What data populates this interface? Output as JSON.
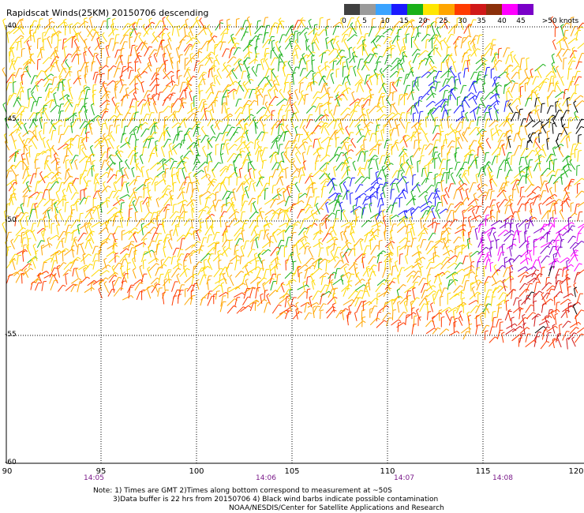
{
  "title": "Rapidscat Winds(25KM) 20150706 descending",
  "colorbar": {
    "labels": [
      "0",
      "5",
      "10",
      "15",
      "20",
      "25",
      "30",
      "35",
      "40",
      "45",
      ">50 knots"
    ],
    "colors": [
      "#404040",
      "#9a9a9a",
      "#3aa3ff",
      "#1a1aff",
      "#19b019",
      "#ffe600",
      "#ffa500",
      "#ff3b00",
      "#d01818",
      "#8b2f0a",
      "#ff00ff",
      "#7a00c8"
    ]
  },
  "axes": {
    "lat_labels": [
      "-40",
      "-45",
      "-50",
      "-55",
      "-60"
    ],
    "lon_labels": [
      "90",
      "95",
      "100",
      "105",
      "110",
      "115",
      "120"
    ],
    "time_labels": [
      "14:05",
      "14:06",
      "14:07",
      "14:08"
    ]
  },
  "notes": {
    "line1": "Note: 1) Times are GMT 2)Times along bottom correspond to measurement at ~50S",
    "line2": "3)Data buffer is 22 hrs from 20150706 4) Black wind barbs indicate possible contamination",
    "line3": "NOAA/NESDIS/Center for Satellite Applications and Research"
  }
}
